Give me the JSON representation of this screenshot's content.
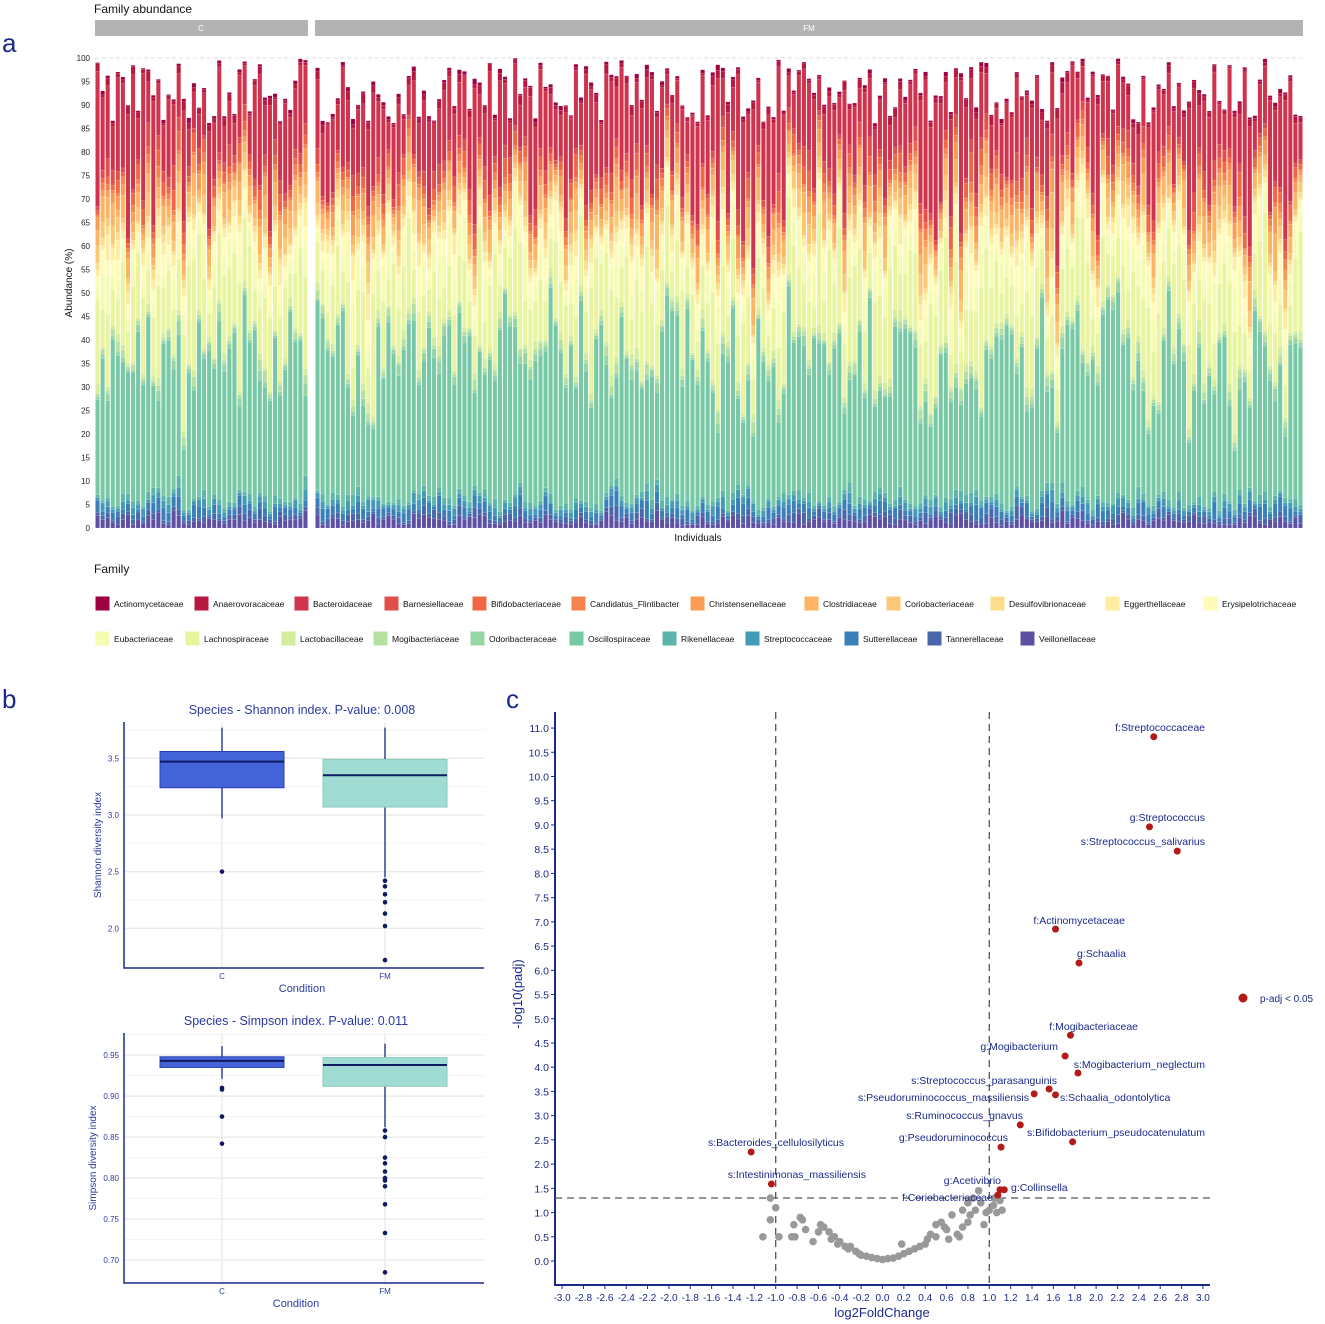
{
  "panel_labels": {
    "a": "a",
    "b": "b",
    "c": "c"
  },
  "chart_data": [
    {
      "type": "bar",
      "stacked": true,
      "title": "Family abundance",
      "xlabel": "Individuals",
      "ylabel": "Abundance (%)",
      "ylim": [
        0,
        100
      ],
      "yticks": [
        0,
        5,
        10,
        15,
        20,
        25,
        30,
        35,
        40,
        45,
        50,
        55,
        60,
        65,
        70,
        75,
        80,
        85,
        90,
        95,
        100
      ],
      "facets": [
        {
          "label": "C",
          "n_individuals": 42
        },
        {
          "label": "FM",
          "n_individuals": 195
        }
      ],
      "legend_title": "Family",
      "legend_position": "bottom",
      "families": [
        {
          "name": "Actinomycetaceae",
          "color": "#9e0142",
          "mean": 0.5
        },
        {
          "name": "Anaerovoracaceae",
          "color": "#b8183f",
          "mean": 1.0
        },
        {
          "name": "Bacteroidaceae",
          "color": "#d0334d",
          "mean": 15.0
        },
        {
          "name": "Barnesiellaceae",
          "color": "#e04f4a",
          "mean": 2.0
        },
        {
          "name": "Bifidobacteriaceae",
          "color": "#f16744",
          "mean": 2.0
        },
        {
          "name": "Candidatus_Flintibacter",
          "color": "#f7834c",
          "mean": 1.0
        },
        {
          "name": "Christensenellaceae",
          "color": "#fb9c55",
          "mean": 2.0
        },
        {
          "name": "Clostridiaceae",
          "color": "#fdb463",
          "mean": 3.0
        },
        {
          "name": "Coriobacteriaceae",
          "color": "#fdc875",
          "mean": 2.0
        },
        {
          "name": "Desulfovibrionaceae",
          "color": "#fedd8a",
          "mean": 1.0
        },
        {
          "name": "Eggerthellaceae",
          "color": "#feeda0",
          "mean": 2.0
        },
        {
          "name": "Erysipelotrichaceae",
          "color": "#fffbb8",
          "mean": 3.0
        },
        {
          "name": "Eubacteriaceae",
          "color": "#f5fbb0",
          "mean": 5.0
        },
        {
          "name": "Lachnospiraceae",
          "color": "#e8f59e",
          "mean": 12.0
        },
        {
          "name": "Lactobacillaceae",
          "color": "#d3ed9b",
          "mean": 1.0
        },
        {
          "name": "Mogibacteriaceae",
          "color": "#b5e1a0",
          "mean": 1.0
        },
        {
          "name": "Odoribacteraceae",
          "color": "#96d5a4",
          "mean": 1.0
        },
        {
          "name": "Oscillospiraceae",
          "color": "#77c8a4",
          "mean": 35.0
        },
        {
          "name": "Rikenellaceae",
          "color": "#5bb5aa",
          "mean": 1.0
        },
        {
          "name": "Streptococcaceae",
          "color": "#439bb5",
          "mean": 1.0
        },
        {
          "name": "Sutterellaceae",
          "color": "#3a7fb8",
          "mean": 1.5
        },
        {
          "name": "Tannerellaceae",
          "color": "#4a66ab",
          "mean": 1.0
        },
        {
          "name": "Veillonellaceae",
          "color": "#5e4fa2",
          "mean": 1.5
        }
      ]
    },
    {
      "type": "box",
      "title": "Species - Shannon index. P-value: 0.008",
      "xlabel": "Condition",
      "ylabel": "Shannon diversity index",
      "ylim": [
        1.65,
        3.82
      ],
      "yticks": [
        "2.0",
        "2.5",
        "3.0",
        "3.5"
      ],
      "groups": [
        {
          "name": "C",
          "color": "#4363d8",
          "q1": 3.24,
          "median": 3.47,
          "q3": 3.56,
          "whisker_low": 2.97,
          "whisker_high": 3.77,
          "outliers": [
            2.5
          ]
        },
        {
          "name": "FM",
          "color": "#a0dcd3",
          "q1": 3.07,
          "median": 3.35,
          "q3": 3.49,
          "whisker_low": 2.45,
          "whisker_high": 3.77,
          "outliers": [
            2.42,
            2.37,
            2.3,
            2.23,
            2.13,
            2.02,
            1.72
          ]
        }
      ]
    },
    {
      "type": "box",
      "title": "Species - Simpson index. P-value: 0.011",
      "xlabel": "Condition",
      "ylabel": "Simpson diversity index",
      "ylim": [
        0.672,
        0.977
      ],
      "yticks": [
        "0.70",
        "0.75",
        "0.80",
        "0.85",
        "0.90",
        "0.95"
      ],
      "groups": [
        {
          "name": "C",
          "color": "#4363d8",
          "q1": 0.935,
          "median": 0.943,
          "q3": 0.948,
          "whisker_low": 0.921,
          "whisker_high": 0.961,
          "outliers": [
            0.91,
            0.908,
            0.875,
            0.842
          ]
        },
        {
          "name": "FM",
          "color": "#a0dcd3",
          "q1": 0.912,
          "median": 0.938,
          "q3": 0.947,
          "whisker_low": 0.862,
          "whisker_high": 0.964,
          "outliers": [
            0.858,
            0.85,
            0.825,
            0.818,
            0.808,
            0.8,
            0.797,
            0.79,
            0.768,
            0.733,
            0.685
          ]
        }
      ]
    },
    {
      "type": "scatter",
      "title": "",
      "xlabel": "log2FoldChange",
      "ylabel": "-log10(padj)",
      "xlim": [
        -3.0,
        3.0
      ],
      "ylim": [
        0,
        11.0
      ],
      "xticks": [
        "-3.0",
        "-2.8",
        "-2.6",
        "-2.4",
        "-2.2",
        "-2.0",
        "-1.8",
        "-1.6",
        "-1.4",
        "-1.2",
        "-1.0",
        "-0.8",
        "-0.6",
        "-0.4",
        "-0.2",
        "0.0",
        "0.2",
        "0.4",
        "0.6",
        "0.8",
        "1.0",
        "1.2",
        "1.4",
        "1.6",
        "1.8",
        "2.0",
        "2.2",
        "2.4",
        "2.6",
        "2.8",
        "3.0"
      ],
      "yticks": [
        "0.0",
        "0.5",
        "1.0",
        "1.5",
        "2.0",
        "2.5",
        "3.0",
        "3.5",
        "4.0",
        "4.5",
        "5.0",
        "5.5",
        "6.0",
        "6.5",
        "7.0",
        "7.5",
        "8.0",
        "8.5",
        "9.0",
        "9.5",
        "10.0",
        "10.5",
        "11.0"
      ],
      "thresholds": {
        "log2fc": [
          -1.0,
          1.0
        ],
        "neglog10padj": 1.3
      },
      "legend": {
        "label": "p-adj < 0.05",
        "color": "#b31b1b",
        "position": "right"
      },
      "significant": [
        {
          "label": "f:Streptococcaceae",
          "x": 2.54,
          "y": 10.82
        },
        {
          "label": "g:Streptococcus",
          "x": 2.5,
          "y": 8.96
        },
        {
          "label": "s:Streptococcus_salivarius",
          "x": 2.76,
          "y": 8.46
        },
        {
          "label": "f:Actinomycetaceae",
          "x": 1.62,
          "y": 6.85
        },
        {
          "label": "g:Schaalia",
          "x": 1.84,
          "y": 6.15
        },
        {
          "label": "f:Mogibacteriaceae",
          "x": 1.76,
          "y": 4.66
        },
        {
          "label": "g:Mogibacterium",
          "x": 1.71,
          "y": 4.23
        },
        {
          "label": "s:Mogibacterium_neglectum",
          "x": 1.83,
          "y": 3.88
        },
        {
          "label": "s:Streptococcus_parasanguinis",
          "x": 1.56,
          "y": 3.55
        },
        {
          "label": "s:Schaalia_odontolytica",
          "x": 1.62,
          "y": 3.43
        },
        {
          "label": "s:Pseudoruminococcus_massiliensis",
          "x": 1.42,
          "y": 3.45
        },
        {
          "label": "s:Ruminococcus_gnavus",
          "x": 1.29,
          "y": 2.81
        },
        {
          "label": "s:Bifidobacterium_pseudocatenulatum",
          "x": 1.78,
          "y": 2.46
        },
        {
          "label": "g:Pseudoruminococcus",
          "x": 1.11,
          "y": 2.35
        },
        {
          "label": "s:Bacteroides_cellulosilyticus",
          "x": -1.23,
          "y": 2.25
        },
        {
          "label": "s:Intestinimonas_massiliensis",
          "x": -1.04,
          "y": 1.59
        },
        {
          "label": "g:Acetivibrio",
          "x": 1.1,
          "y": 1.47
        },
        {
          "label": "g:Collinsella",
          "x": 1.14,
          "y": 1.47
        },
        {
          "label": "f:Coriobacteriaceae",
          "x": 1.08,
          "y": 1.36
        }
      ],
      "nonsignificant": [
        [
          -1.12,
          0.5
        ],
        [
          -1.05,
          0.85
        ],
        [
          -1.05,
          1.3
        ],
        [
          -1.0,
          1.1
        ],
        [
          -0.97,
          0.5
        ],
        [
          -0.85,
          0.5
        ],
        [
          -0.83,
          0.75
        ],
        [
          -0.82,
          0.5
        ],
        [
          -0.77,
          0.9
        ],
        [
          -0.75,
          0.85
        ],
        [
          -0.72,
          0.65
        ],
        [
          -0.65,
          0.4
        ],
        [
          -0.6,
          0.6
        ],
        [
          -0.58,
          0.75
        ],
        [
          -0.55,
          0.7
        ],
        [
          -0.5,
          0.6
        ],
        [
          -0.48,
          0.45
        ],
        [
          -0.45,
          0.5
        ],
        [
          -0.42,
          0.35
        ],
        [
          -0.4,
          0.4
        ],
        [
          -0.35,
          0.3
        ],
        [
          -0.32,
          0.25
        ],
        [
          -0.3,
          0.3
        ],
        [
          -0.25,
          0.2
        ],
        [
          -0.22,
          0.15
        ],
        [
          -0.2,
          0.12
        ],
        [
          -0.15,
          0.1
        ],
        [
          -0.1,
          0.07
        ],
        [
          -0.05,
          0.05
        ],
        [
          0.0,
          0.03
        ],
        [
          0.05,
          0.05
        ],
        [
          0.1,
          0.06
        ],
        [
          0.15,
          0.1
        ],
        [
          0.18,
          0.35
        ],
        [
          0.2,
          0.15
        ],
        [
          0.25,
          0.2
        ],
        [
          0.3,
          0.25
        ],
        [
          0.35,
          0.3
        ],
        [
          0.4,
          0.35
        ],
        [
          0.42,
          0.45
        ],
        [
          0.45,
          0.55
        ],
        [
          0.5,
          0.5
        ],
        [
          0.5,
          0.75
        ],
        [
          0.55,
          0.8
        ],
        [
          0.58,
          0.7
        ],
        [
          0.6,
          0.65
        ],
        [
          0.62,
          0.45
        ],
        [
          0.65,
          0.95
        ],
        [
          0.7,
          0.55
        ],
        [
          0.72,
          0.5
        ],
        [
          0.75,
          0.7
        ],
        [
          0.8,
          0.8
        ],
        [
          0.82,
          0.95
        ],
        [
          0.85,
          1.3
        ],
        [
          0.87,
          1.05
        ],
        [
          0.9,
          1.45
        ],
        [
          0.92,
          1.2
        ],
        [
          0.95,
          0.75
        ],
        [
          0.97,
          1.0
        ],
        [
          1.0,
          1.05
        ],
        [
          1.04,
          1.15
        ],
        [
          1.07,
          1.0
        ],
        [
          1.1,
          1.25
        ],
        [
          1.12,
          1.05
        ],
        [
          1.05,
          1.3
        ],
        [
          0.8,
          1.2
        ],
        [
          0.75,
          1.05
        ]
      ]
    }
  ]
}
